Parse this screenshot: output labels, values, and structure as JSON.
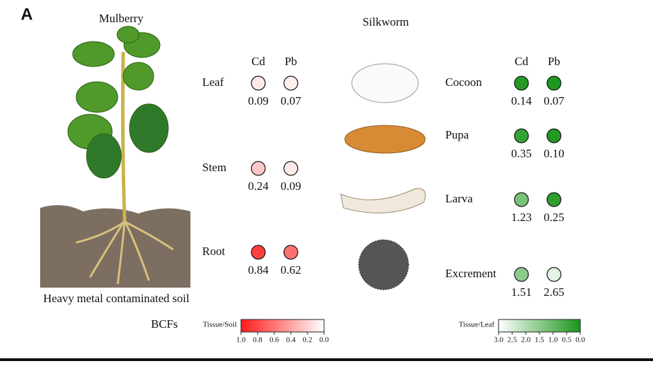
{
  "panel_label": "A",
  "mulberry": {
    "title": "Mulberry",
    "soil_label": "Heavy metal contaminated soil",
    "columns": [
      "Cd",
      "Pb"
    ],
    "rows": [
      {
        "label": "Leaf",
        "values": [
          {
            "value": 0.09,
            "label": "0.09"
          },
          {
            "value": 0.07,
            "label": "0.07"
          }
        ]
      },
      {
        "label": "Stem",
        "values": [
          {
            "value": 0.24,
            "label": "0.24"
          },
          {
            "value": 0.09,
            "label": "0.09"
          }
        ]
      },
      {
        "label": "Root",
        "values": [
          {
            "value": 0.84,
            "label": "0.84"
          },
          {
            "value": 0.62,
            "label": "0.62"
          }
        ]
      }
    ]
  },
  "silkworm": {
    "title": "Silkworm",
    "columns": [
      "Cd",
      "Pb"
    ],
    "rows": [
      {
        "label": "Cocoon",
        "values": [
          {
            "value": 0.14,
            "label": "0.14"
          },
          {
            "value": 0.07,
            "label": "0.07"
          }
        ]
      },
      {
        "label": "Pupa",
        "values": [
          {
            "value": 0.35,
            "label": "0.35"
          },
          {
            "value": 0.1,
            "label": "0.10"
          }
        ]
      },
      {
        "label": "Larva",
        "values": [
          {
            "value": 1.23,
            "label": "1.23"
          },
          {
            "value": 0.25,
            "label": "0.25"
          }
        ]
      },
      {
        "label": "Excrement",
        "values": [
          {
            "value": 1.51,
            "label": "1.51"
          },
          {
            "value": 2.65,
            "label": "2.65"
          }
        ]
      }
    ]
  },
  "legend": {
    "title": "BCFs",
    "soil_scale": {
      "label": "Tissue/Soil",
      "low_color": "#ffffff",
      "high_color": "#ff1a1a",
      "ticks": [
        {
          "value": 1,
          "label": "1.0"
        },
        {
          "value": 0.8,
          "label": "0.8"
        },
        {
          "value": 0.6,
          "label": "0.6"
        },
        {
          "value": 0.4,
          "label": "0.4"
        },
        {
          "value": 0.2,
          "label": "0.2"
        },
        {
          "value": 0,
          "label": "0.0"
        }
      ]
    },
    "leaf_scale": {
      "label": "Tissue/Leaf",
      "low_color": "#1a961a",
      "high_color": "#ffffff",
      "ticks": [
        {
          "value": 3,
          "label": "3.0"
        },
        {
          "value": 2.5,
          "label": "2.5"
        },
        {
          "value": 2,
          "label": "2.0"
        },
        {
          "value": 1.5,
          "label": "1.5"
        },
        {
          "value": 1,
          "label": "1.0"
        },
        {
          "value": 0.5,
          "label": "0.5"
        },
        {
          "value": 0,
          "label": "0.0"
        }
      ]
    }
  }
}
